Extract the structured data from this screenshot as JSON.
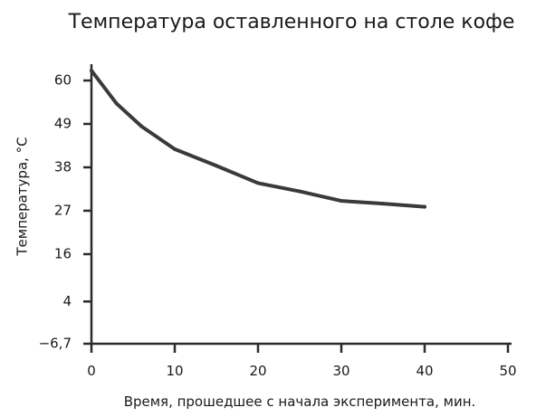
{
  "chart_data": {
    "type": "line",
    "title": "Температура оставленного на столе кофе",
    "xlabel": "Время, прошедшее с начала эксперимента, мин.",
    "ylabel": "Температура, °C",
    "xlim": [
      0,
      50
    ],
    "ylim": [
      -6.7,
      60
    ],
    "x_ticks": [
      0,
      10,
      20,
      30,
      40,
      50
    ],
    "x_tick_labels": [
      "0",
      "10",
      "20",
      "30",
      "40",
      "50"
    ],
    "y_ticks": [
      -6.7,
      4,
      16,
      27,
      38,
      49,
      60
    ],
    "y_tick_labels": [
      "−6,7",
      "4",
      "16",
      "27",
      "38",
      "49",
      "60"
    ],
    "grid": false,
    "legend": "none",
    "series": [
      {
        "color": "#3a3a3a",
        "x": [
          0,
          3,
          6,
          10,
          15,
          20,
          25,
          30,
          35,
          40
        ],
        "y": [
          62.5,
          54.2,
          48.4,
          42.6,
          38.4,
          34.0,
          31.9,
          29.5,
          28.8,
          28.0
        ]
      }
    ]
  }
}
